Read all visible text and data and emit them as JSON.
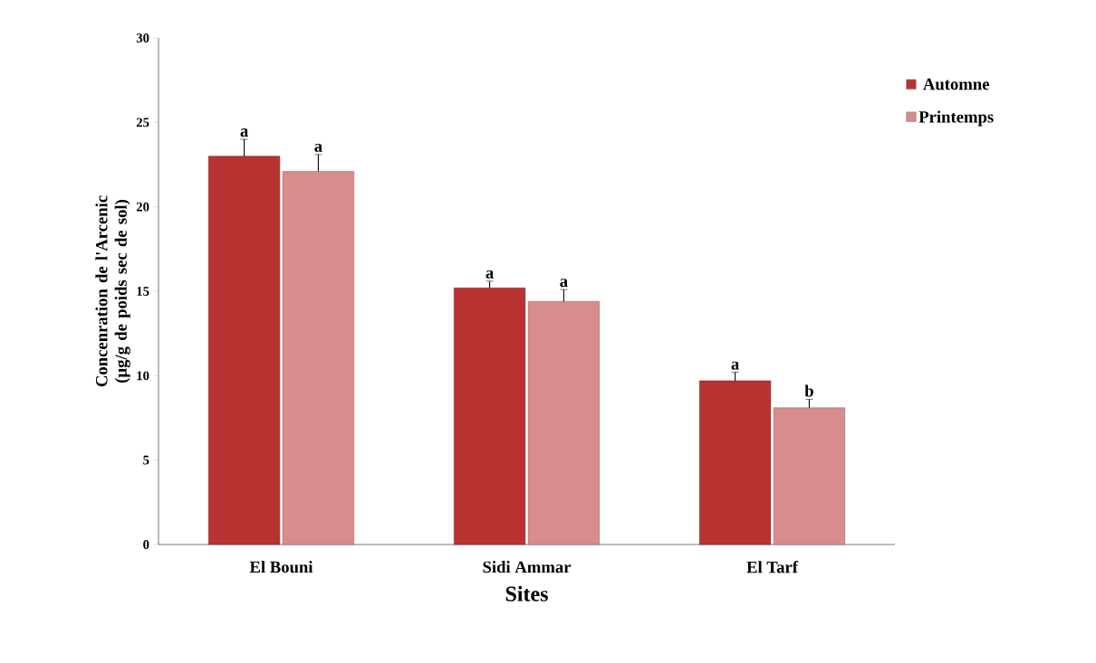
{
  "chart_data": {
    "type": "bar",
    "xlabel": "Sites",
    "ylabel": "Concenration de l'Arcenic (µg/g de poids sec de sol)",
    "categories": [
      "El Bouni",
      "Sidi Ammar",
      "El Tarf"
    ],
    "series": [
      {
        "name": "Automne",
        "color": "#b83232",
        "values": [
          23.0,
          15.2,
          9.7
        ],
        "errors": [
          1.0,
          0.4,
          0.5
        ]
      },
      {
        "name": "Printemps",
        "color": "#d98c8c",
        "values": [
          22.1,
          14.4,
          8.1
        ],
        "errors": [
          1.0,
          0.7,
          0.5
        ]
      }
    ],
    "ylim": [
      0,
      30
    ],
    "yticks": [
      0,
      5,
      10,
      15,
      20,
      25,
      30
    ],
    "grid": false,
    "legend": "top right",
    "annotations": [
      "a",
      "a",
      "a",
      "a",
      "a",
      "b"
    ]
  }
}
